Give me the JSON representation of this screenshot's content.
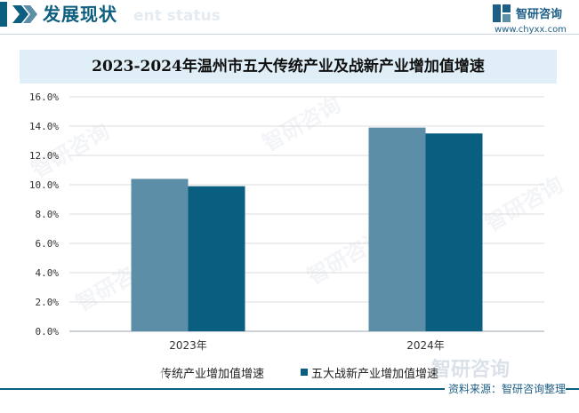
{
  "header": {
    "title": "发展现状",
    "watermark_text": "ent status",
    "accent_color": "#0d5f80"
  },
  "logo": {
    "name": "智研咨询",
    "url": "www.chyxx.com",
    "icon": "zhiyan-logo-icon"
  },
  "chart_data": {
    "type": "bar",
    "title": "2023-2024年温州市五大传统产业及战新产业增加值增速",
    "categories": [
      "2023年",
      "2024年"
    ],
    "series": [
      {
        "name": "传统产业增加值增速",
        "values": [
          10.4,
          13.9
        ],
        "color": "#5c8ea8"
      },
      {
        "name": "五大战新产业增加值增速",
        "values": [
          9.9,
          13.5
        ],
        "color": "#0a5f80"
      }
    ],
    "ylim": [
      0,
      16
    ],
    "yticks": [
      "0.0%",
      "2.0%",
      "4.0%",
      "6.0%",
      "8.0%",
      "10.0%",
      "12.0%",
      "14.0%",
      "16.0%"
    ],
    "ytick_values": [
      0,
      2,
      4,
      6,
      8,
      10,
      12,
      14,
      16
    ],
    "xlabel": "",
    "ylabel": "",
    "grid": true,
    "legend_position": "bottom"
  },
  "legend": {
    "item_a_label_visible": "传统产业增加值增速",
    "item_b_label": "五大战新产业增加值增速"
  },
  "watermark": {
    "text": "智研咨询"
  },
  "source": {
    "text": "资料来源：智研咨询整理"
  }
}
